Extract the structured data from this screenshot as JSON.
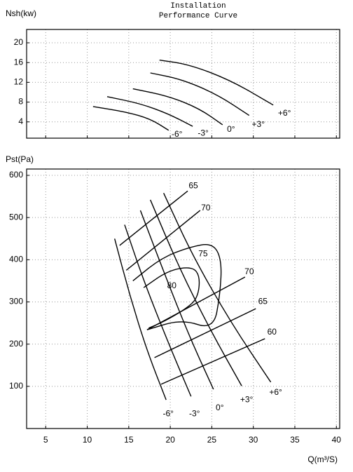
{
  "chart_data": [
    {
      "type": "line",
      "title": [
        "Installation",
        "Performance Curve"
      ],
      "y_label": "Nsh(kw)",
      "xlim": [
        2.7,
        40.4
      ],
      "ylim": [
        0.7,
        22.7
      ],
      "xticks": [
        5,
        10,
        15,
        20,
        25,
        30,
        35,
        40
      ],
      "yticks": [
        4,
        8,
        12,
        16,
        20
      ],
      "show_xtick_labels": false,
      "grid": true,
      "color": "#000000",
      "series": [
        {
          "name": "-6°",
          "x": [
            10.7,
            14.7,
            17.6,
            19.8
          ],
          "values": [
            7.1,
            6.0,
            4.6,
            2.3
          ]
        },
        {
          "name": "-3°",
          "x": [
            12.4,
            16.4,
            19.8,
            22.7
          ],
          "values": [
            9.1,
            7.7,
            5.6,
            3.1
          ]
        },
        {
          "name": "0°",
          "x": [
            15.5,
            19.8,
            23.5,
            26.3
          ],
          "values": [
            10.7,
            9.2,
            6.7,
            3.4
          ]
        },
        {
          "name": "+3°",
          "x": [
            17.6,
            21.4,
            25.7,
            29.5
          ],
          "values": [
            13.9,
            12.6,
            9.5,
            5.3
          ]
        },
        {
          "name": "+6°",
          "x": [
            18.7,
            22.3,
            27.3,
            32.4
          ],
          "values": [
            16.5,
            15.6,
            12.4,
            7.4
          ]
        }
      ]
    },
    {
      "type": "line",
      "y_label": "Pst(Pa)",
      "x_label": "Q(m³/S)",
      "xlim": [
        2.7,
        40.4
      ],
      "ylim": [
        0,
        615
      ],
      "xticks": [
        5,
        10,
        15,
        20,
        25,
        30,
        35,
        40
      ],
      "yticks": [
        100,
        200,
        300,
        400,
        500,
        600
      ],
      "show_xtick_labels": true,
      "grid": true,
      "color": "#000000",
      "series": [
        {
          "name": "-6°",
          "x": [
            13.3,
            15.1,
            17.2,
            19.5
          ],
          "values": [
            450,
            317,
            184,
            68
          ]
        },
        {
          "name": "-3°",
          "x": [
            14.5,
            16.8,
            19.8,
            22.5
          ],
          "values": [
            483,
            350,
            201,
            76
          ]
        },
        {
          "name": "0°",
          "x": [
            16.4,
            19.3,
            22.3,
            25.2
          ],
          "values": [
            517,
            367,
            218,
            93
          ]
        },
        {
          "name": "+3°",
          "x": [
            17.6,
            21.0,
            24.8,
            28.6
          ],
          "values": [
            542,
            384,
            234,
            101
          ]
        },
        {
          "name": "+6°",
          "x": [
            19.2,
            22.7,
            27.3,
            32.1
          ],
          "values": [
            558,
            409,
            251,
            110
          ]
        },
        {
          "name": "65",
          "x": [
            13.9,
            22.1
          ],
          "values": [
            434,
            563
          ]
        },
        {
          "name": "70",
          "x": [
            14.7,
            23.6
          ],
          "values": [
            375,
            517
          ]
        },
        {
          "name": "70",
          "x": [
            17.2,
            29.0
          ],
          "values": [
            234,
            359
          ]
        },
        {
          "name": "65",
          "x": [
            18.1,
            30.3
          ],
          "values": [
            168,
            284
          ]
        },
        {
          "name": "60",
          "x": [
            18.9,
            31.4
          ],
          "values": [
            105,
            213
          ]
        },
        {
          "name": "80",
          "x": [
            16.8,
            19.8,
            22.7,
            23.6,
            23.3,
            21.9,
            19.3,
            17.4
          ],
          "values": [
            334,
            375,
            384,
            359,
            309,
            284,
            254,
            238
          ]
        },
        {
          "name": "75",
          "x": [
            15.5,
            18.9,
            22.3,
            25.1,
            26.2,
            26.0,
            25.2,
            21.4,
            17.2
          ],
          "values": [
            350,
            404,
            430,
            440,
            400,
            317,
            234,
            259,
            234
          ]
        }
      ]
    }
  ]
}
